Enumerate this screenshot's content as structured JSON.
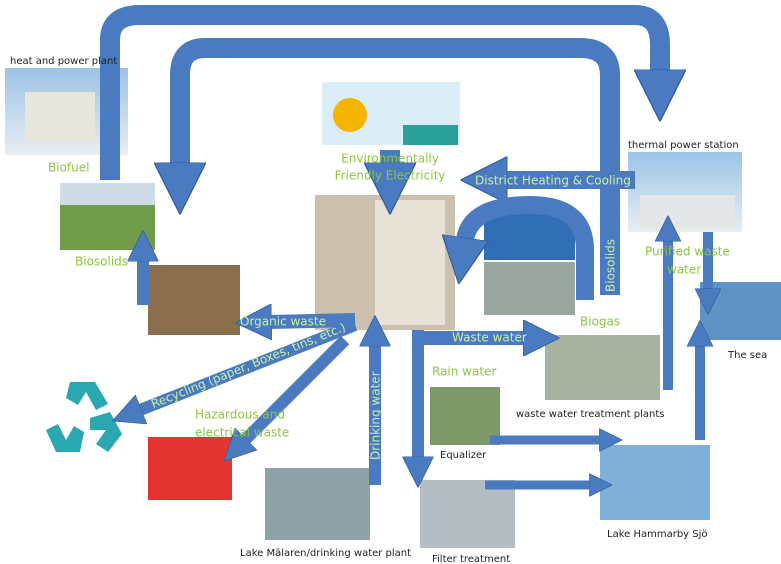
{
  "nodes": [
    {
      "label": "heat and power plant"
    },
    {
      "label": "Biofuel"
    },
    {
      "label": "Biosolids"
    },
    {
      "label": "thermal power station"
    },
    {
      "label": "The sea"
    },
    {
      "label": "waste water treatment plants"
    },
    {
      "label": "Equalizer"
    },
    {
      "label": "Lake Hammarby Sjö"
    },
    {
      "label": "Lake Mälaren/drinking water plant"
    },
    {
      "label": "Filter treatment"
    }
  ],
  "flows": [
    {
      "label": "Environmentally"
    },
    {
      "label": "Friendly Electricity"
    },
    {
      "label": "District Heating & Cooling"
    },
    {
      "label": "Biosolids"
    },
    {
      "label": "Purified waste"
    },
    {
      "label": "water"
    },
    {
      "label": "Organic waste"
    },
    {
      "label": "Waste water"
    },
    {
      "label": "Biogas"
    },
    {
      "label": "Rain water"
    },
    {
      "label": "Recycling (paper, Boxes, tins, etc.)"
    },
    {
      "label": "Hazardous and"
    },
    {
      "label": "electrical waste"
    },
    {
      "label": "Drinking water"
    }
  ]
}
